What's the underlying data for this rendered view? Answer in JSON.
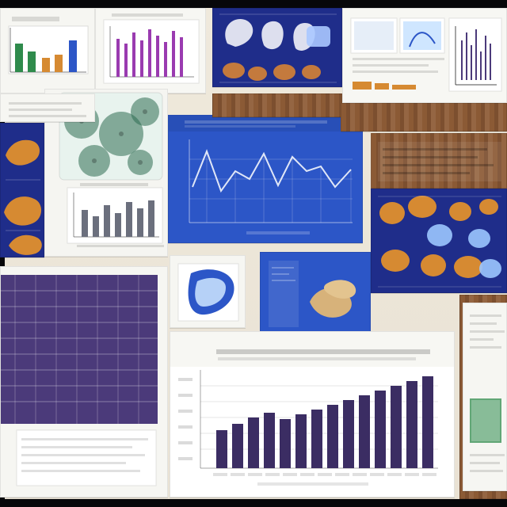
{
  "image": {
    "width": 640,
    "height": 640
  },
  "palette": {
    "blue": "#2c56c7",
    "navy": "#1f2d8a",
    "paper": "#f6f6f2",
    "wood": "#8b5a35",
    "purple": "#4b3a7a",
    "magenta": "#9a3bb0",
    "orange": "#d68a32",
    "green": "#2f8b4c",
    "teal": "#1b7f8a"
  },
  "icons": {
    "collage": "collage-icon",
    "line_chart": "line-chart-icon",
    "bar_chart": "bar-chart-icon",
    "table_pattern": "table-pattern-icon",
    "specimens": "specimens-icon",
    "microscopy": "microscopy-icon"
  }
}
